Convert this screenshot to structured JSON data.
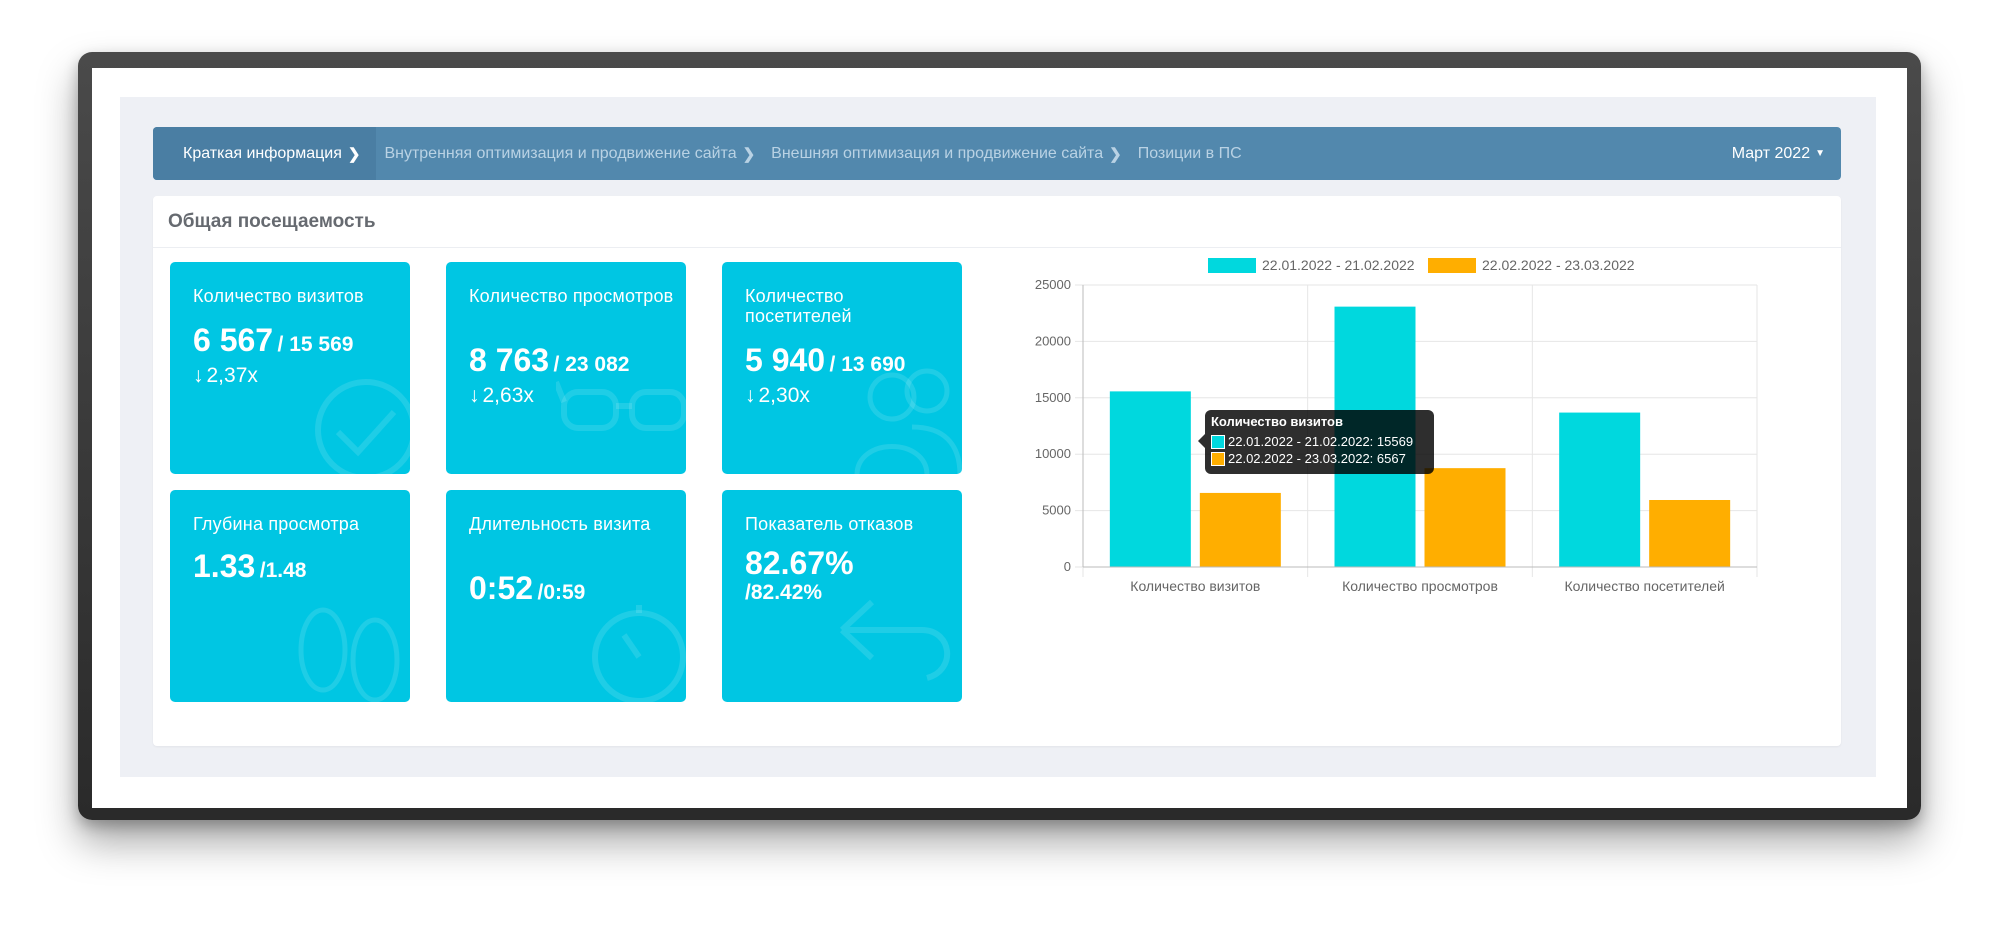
{
  "nav": {
    "items": [
      {
        "label": "Краткая информация",
        "active": true
      },
      {
        "label": "Внутренняя оптимизация и продвижение сайта",
        "active": false
      },
      {
        "label": "Внешняя оптимизация и продвижение сайта",
        "active": false
      },
      {
        "label": "Позиции в ПС",
        "active": false
      }
    ],
    "period": "Март 2022"
  },
  "panel": {
    "title": "Общая посещаемость"
  },
  "cards": [
    {
      "title": "Количество визитов",
      "main": "6 567",
      "secondary": "/ 15 569",
      "ratio": "2,37x",
      "icon": "check-circle-icon"
    },
    {
      "title": "Количество просмотров",
      "main": "8 763",
      "secondary": "/ 23 082",
      "ratio": "2,63x",
      "icon": "glasses-icon"
    },
    {
      "title": "Количество посетителей",
      "main": "5 940",
      "secondary": "/ 13 690",
      "ratio": "2,30x",
      "icon": "users-icon"
    },
    {
      "title": "Глубина просмотра",
      "main": "1.33",
      "secondary": "/1.48",
      "icon": "footprints-icon"
    },
    {
      "title": "Длительность визита",
      "main": "0:52",
      "secondary": "/0:59",
      "icon": "stopwatch-icon"
    },
    {
      "title": "Показатель отказов",
      "main": "82.67%",
      "secondary": "/82.42%",
      "icon": "return-arrow-icon"
    }
  ],
  "colors": {
    "card": "#00c6e3",
    "nav": "#5288ad",
    "series1": "#00d8de",
    "series2": "#ffae00"
  },
  "chart_data": {
    "type": "bar",
    "categories": [
      "Количество визитов",
      "Количество просмотров",
      "Количество посетителей"
    ],
    "series": [
      {
        "name": "22.01.2022 - 21.02.2022",
        "values": [
          15569,
          23082,
          13690
        ],
        "color": "#00d8de"
      },
      {
        "name": "22.02.2022 - 23.03.2022",
        "values": [
          6567,
          8763,
          5940
        ],
        "color": "#ffae00"
      }
    ],
    "yticks": [
      0,
      5000,
      10000,
      15000,
      20000,
      25000
    ],
    "ylim": [
      0,
      25000
    ],
    "grid": true,
    "legend": "top"
  },
  "tooltip": {
    "title": "Количество визитов",
    "rows": [
      {
        "text": "22.01.2022 - 21.02.2022: 15569",
        "color": "#00d8de"
      },
      {
        "text": "22.02.2022 - 23.03.2022: 6567",
        "color": "#ffae00"
      }
    ]
  }
}
